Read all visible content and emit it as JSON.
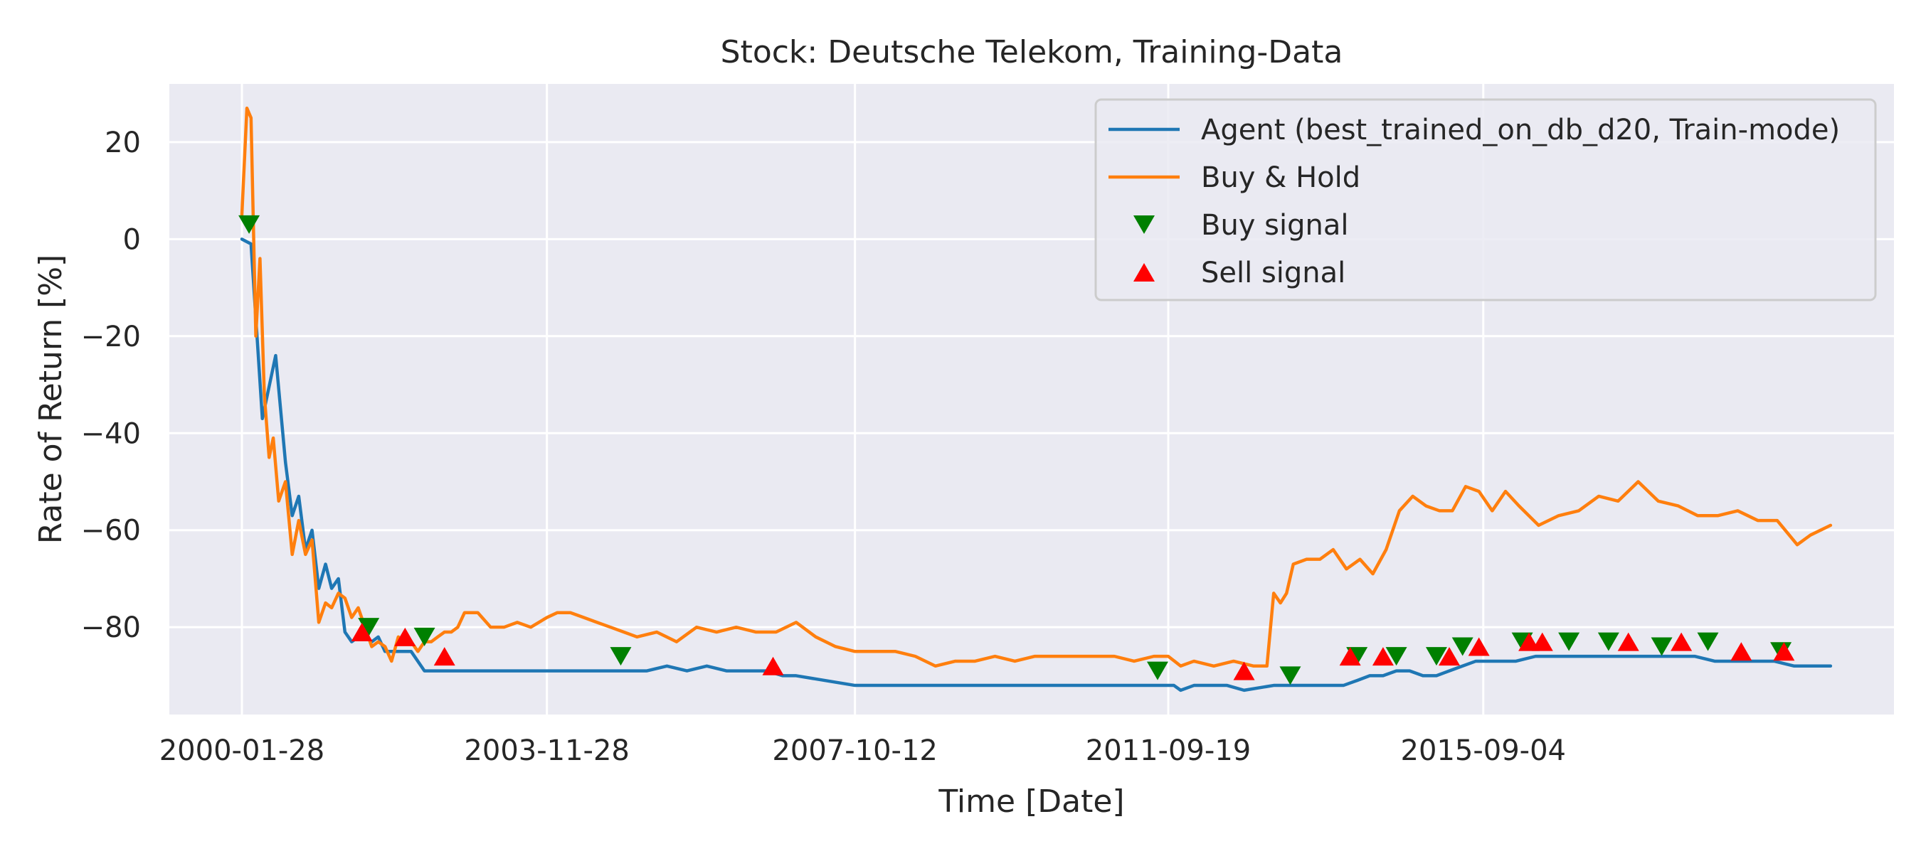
{
  "chart_data": {
    "type": "line",
    "title": "Stock: Deutsche Telekom, Training-Data",
    "xlabel": "Time [Date]",
    "ylabel": "Rate of Return [%]",
    "x_is_date": true,
    "xlim": [
      "1999-03-01",
      "2020-11-01"
    ],
    "ylim": [
      -98,
      32
    ],
    "xticks": [
      "2000-01-28",
      "2003-11-28",
      "2007-10-12",
      "2011-09-19",
      "2015-09-04"
    ],
    "yticks": [
      20,
      0,
      -20,
      -40,
      -60,
      -80
    ],
    "grid": true,
    "legend": "top-right",
    "series": [
      {
        "name": "Agent (best_trained_on_db_d20, Train-mode)",
        "color": "#1f77b4",
        "x": [
          "2000-01-28",
          "2000-03-10",
          "2000-05-01",
          "2000-07-01",
          "2000-08-15",
          "2000-09-15",
          "2000-10-15",
          "2000-11-15",
          "2000-12-15",
          "2001-01-15",
          "2001-02-15",
          "2001-03-15",
          "2001-04-15",
          "2001-05-15",
          "2001-06-15",
          "2001-07-15",
          "2001-08-15",
          "2001-09-15",
          "2001-10-15",
          "2001-11-15",
          "2001-12-15",
          "2002-01-15",
          "2002-03-15",
          "2002-05-15",
          "2002-07-15",
          "2002-09-01",
          "2002-09-20",
          "2002-11-15",
          "2003-01-15",
          "2003-06-01",
          "2003-11-28",
          "2004-06-01",
          "2004-12-01",
          "2005-03-01",
          "2005-06-01",
          "2005-09-01",
          "2005-12-01",
          "2006-03-01",
          "2006-06-01",
          "2006-09-01",
          "2006-11-15",
          "2007-01-15",
          "2007-10-12",
          "2009-01-01",
          "2010-06-01",
          "2011-09-01",
          "2011-10-15",
          "2011-11-15",
          "2012-01-15",
          "2012-03-15",
          "2012-06-15",
          "2012-09-01",
          "2013-01-15",
          "2013-06-01",
          "2013-08-01",
          "2013-10-01",
          "2013-12-01",
          "2014-02-01",
          "2014-04-01",
          "2014-06-01",
          "2014-08-01",
          "2014-10-01",
          "2014-12-01",
          "2015-02-01",
          "2015-04-01",
          "2015-06-01",
          "2015-08-01",
          "2015-10-01",
          "2015-12-01",
          "2016-02-01",
          "2016-05-01",
          "2016-08-01",
          "2016-11-01",
          "2017-02-01",
          "2017-05-01",
          "2017-08-01",
          "2017-11-01",
          "2018-02-01",
          "2018-05-01",
          "2018-08-01",
          "2018-11-01",
          "2019-02-01",
          "2019-05-01",
          "2019-08-01",
          "2019-11-01"
        ],
        "y": [
          0,
          -1,
          -37,
          -24,
          -46,
          -57,
          -53,
          -64,
          -60,
          -72,
          -67,
          -72,
          -70,
          -81,
          -83,
          -82,
          -82,
          -83,
          -82,
          -85,
          -85,
          -85,
          -85,
          -89,
          -89,
          -89,
          -89,
          -89,
          -89,
          -89,
          -89,
          -89,
          -89,
          -89,
          -88,
          -89,
          -88,
          -89,
          -89,
          -89,
          -90,
          -90,
          -92,
          -92,
          -92,
          -92,
          -92,
          -93,
          -92,
          -92,
          -92,
          -93,
          -92,
          -92,
          -92,
          -92,
          -92,
          -91,
          -90,
          -90,
          -89,
          -89,
          -90,
          -90,
          -89,
          -88,
          -87,
          -87,
          -87,
          -87,
          -86,
          -86,
          -86,
          -86,
          -86,
          -86,
          -86,
          -86,
          -86,
          -87,
          -87,
          -87,
          -87,
          -88,
          -88
        ],
        "y_end": -88
      },
      {
        "name": "Buy & Hold",
        "color": "#ff7f0e",
        "x": [
          "2000-01-28",
          "2000-02-20",
          "2000-03-10",
          "2000-04-01",
          "2000-04-20",
          "2000-05-10",
          "2000-06-01",
          "2000-06-20",
          "2000-07-15",
          "2000-08-15",
          "2000-09-15",
          "2000-10-15",
          "2000-11-15",
          "2000-12-15",
          "2001-01-15",
          "2001-02-15",
          "2001-03-15",
          "2001-04-15",
          "2001-05-15",
          "2001-06-15",
          "2001-07-15",
          "2001-08-15",
          "2001-09-15",
          "2001-10-15",
          "2001-11-15",
          "2001-12-15",
          "2002-01-15",
          "2002-02-15",
          "2002-03-15",
          "2002-04-15",
          "2002-05-15",
          "2002-06-15",
          "2002-07-15",
          "2002-08-15",
          "2002-09-15",
          "2002-10-15",
          "2002-11-15",
          "2003-01-15",
          "2003-03-15",
          "2003-05-15",
          "2003-07-15",
          "2003-09-15",
          "2003-11-28",
          "2004-01-15",
          "2004-03-15",
          "2004-05-15",
          "2004-07-15",
          "2004-09-15",
          "2004-11-15",
          "2005-01-15",
          "2005-04-15",
          "2005-07-15",
          "2005-10-15",
          "2006-01-15",
          "2006-04-15",
          "2006-07-15",
          "2006-10-15",
          "2007-01-15",
          "2007-04-15",
          "2007-07-15",
          "2007-10-12",
          "2008-01-15",
          "2008-04-15",
          "2008-07-15",
          "2008-10-15",
          "2009-01-15",
          "2009-04-15",
          "2009-07-15",
          "2009-10-15",
          "2010-01-15",
          "2010-04-15",
          "2010-07-15",
          "2010-10-15",
          "2011-01-15",
          "2011-04-15",
          "2011-07-15",
          "2011-09-19",
          "2011-11-15",
          "2012-01-15",
          "2012-04-15",
          "2012-07-15",
          "2012-10-15",
          "2012-12-15",
          "2013-01-15",
          "2013-02-15",
          "2013-03-15",
          "2013-04-15",
          "2013-06-15",
          "2013-08-15",
          "2013-10-15",
          "2013-12-15",
          "2014-02-15",
          "2014-04-15",
          "2014-06-15",
          "2014-08-15",
          "2014-10-15",
          "2014-12-15",
          "2015-02-15",
          "2015-04-15",
          "2015-06-15",
          "2015-08-15",
          "2015-10-15",
          "2015-12-15",
          "2016-02-15",
          "2016-05-15",
          "2016-08-15",
          "2016-11-15",
          "2017-02-15",
          "2017-05-15",
          "2017-08-15",
          "2017-11-15",
          "2018-02-15",
          "2018-05-15",
          "2018-08-15",
          "2018-11-15",
          "2019-02-15",
          "2019-05-15",
          "2019-08-15",
          "2019-10-15",
          "2020-01-15"
        ],
        "y": [
          5,
          27,
          25,
          -20,
          -4,
          -32,
          -45,
          -41,
          -54,
          -50,
          -65,
          -58,
          -65,
          -62,
          -79,
          -75,
          -76,
          -73,
          -74,
          -78,
          -76,
          -80,
          -84,
          -83,
          -84,
          -87,
          -82,
          -83,
          -83,
          -85,
          -83,
          -83,
          -82,
          -81,
          -81,
          -80,
          -77,
          -77,
          -80,
          -80,
          -79,
          -80,
          -78,
          -77,
          -77,
          -78,
          -79,
          -80,
          -81,
          -82,
          -81,
          -83,
          -80,
          -81,
          -80,
          -81,
          -81,
          -79,
          -82,
          -84,
          -85,
          -85,
          -85,
          -86,
          -88,
          -87,
          -87,
          -86,
          -87,
          -86,
          -86,
          -86,
          -86,
          -86,
          -87,
          -86,
          -86,
          -88,
          -87,
          -88,
          -87,
          -88,
          -88,
          -73,
          -75,
          -73,
          -67,
          -66,
          -66,
          -64,
          -68,
          -66,
          -69,
          -64,
          -56,
          -53,
          -55,
          -56,
          -56,
          -51,
          -52,
          -56,
          -52,
          -55,
          -59,
          -57,
          -56,
          -53,
          -54,
          -50,
          -54,
          -55,
          -57,
          -57,
          -56,
          -58,
          -58,
          -63,
          -61,
          -59
        ]
      }
    ],
    "markers": [
      {
        "name": "Buy signal",
        "color": "#008000",
        "shape": "triangle-down",
        "x": [
          "2000-03-01",
          "2001-09-01",
          "2002-05-15",
          "2004-11-01",
          "2011-08-01",
          "2013-04-01",
          "2014-02-01",
          "2014-08-01",
          "2015-02-01",
          "2015-06-01",
          "2016-03-01",
          "2016-10-01",
          "2017-04-01",
          "2017-12-01",
          "2018-07-01",
          "2019-06-01"
        ],
        "y": [
          3,
          -80,
          -82,
          -86,
          -89,
          -90,
          -86,
          -86,
          -86,
          -84,
          -83,
          -83,
          -83,
          -84,
          -83,
          -85
        ]
      },
      {
        "name": "Sell signal",
        "color": "#ff0000",
        "shape": "triangle-up",
        "x": [
          "2001-08-01",
          "2002-02-15",
          "2002-08-15",
          "2006-10-01",
          "2012-09-01",
          "2014-01-01",
          "2014-06-01",
          "2015-04-01",
          "2015-08-15",
          "2016-04-01",
          "2016-06-01",
          "2017-07-01",
          "2018-03-01",
          "2018-12-01",
          "2019-06-15"
        ],
        "y": [
          -81,
          -82,
          -86,
          -88,
          -89,
          -86,
          -86,
          -86,
          -84,
          -83,
          -83,
          -83,
          -83,
          -85,
          -85
        ]
      }
    ]
  }
}
